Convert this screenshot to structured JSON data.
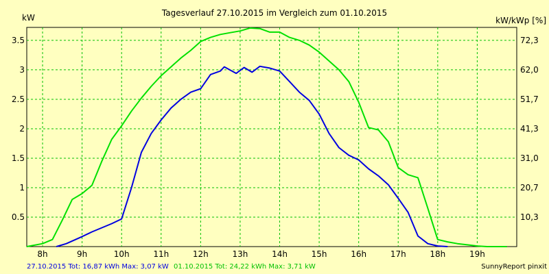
{
  "chart_data": {
    "type": "line",
    "title": "Tagesverlauf 27.10.2015 im Vergleich zum 01.10.2015",
    "ylabel_left": "kW",
    "ylabel_right": "kW/kWp [%]",
    "xlim": [
      7.6,
      20.0
    ],
    "ylim": [
      0,
      3.72
    ],
    "grid": true,
    "x_ticks": [
      {
        "value": 8,
        "label": "8h"
      },
      {
        "value": 9,
        "label": "9h"
      },
      {
        "value": 10,
        "label": "10h"
      },
      {
        "value": 11,
        "label": "11h"
      },
      {
        "value": 12,
        "label": "12h"
      },
      {
        "value": 13,
        "label": "13h"
      },
      {
        "value": 14,
        "label": "14h"
      },
      {
        "value": 15,
        "label": "15h"
      },
      {
        "value": 16,
        "label": "16h"
      },
      {
        "value": 17,
        "label": "17h"
      },
      {
        "value": 18,
        "label": "18h"
      },
      {
        "value": 19,
        "label": "19h"
      }
    ],
    "y_ticks_left": [
      {
        "value": 0.5,
        "label": "0.5"
      },
      {
        "value": 1.0,
        "label": "1"
      },
      {
        "value": 1.5,
        "label": "1.5"
      },
      {
        "value": 2.0,
        "label": "2"
      },
      {
        "value": 2.5,
        "label": "2.5"
      },
      {
        "value": 3.0,
        "label": "3"
      },
      {
        "value": 3.5,
        "label": "3.5"
      }
    ],
    "y_ticks_right": [
      {
        "value": 0.5,
        "label": "10,3"
      },
      {
        "value": 1.0,
        "label": "20,7"
      },
      {
        "value": 1.5,
        "label": "31,0"
      },
      {
        "value": 2.0,
        "label": "41,3"
      },
      {
        "value": 2.5,
        "label": "51,7"
      },
      {
        "value": 3.0,
        "label": "62,0"
      },
      {
        "value": 3.5,
        "label": "72,3"
      }
    ],
    "series": [
      {
        "color": "#00e000",
        "x": [
          7.6,
          8.0,
          8.25,
          8.5,
          8.75,
          9.0,
          9.25,
          9.5,
          9.75,
          10.0,
          10.25,
          10.5,
          10.75,
          11.0,
          11.25,
          11.5,
          11.75,
          12.0,
          12.25,
          12.5,
          12.75,
          13.0,
          13.25,
          13.5,
          13.75,
          14.0,
          14.25,
          14.5,
          14.75,
          15.0,
          15.25,
          15.5,
          15.75,
          16.0,
          16.25,
          16.5,
          16.75,
          17.0,
          17.25,
          17.5,
          17.75,
          18.0,
          18.25,
          18.5,
          18.75,
          19.0,
          19.25,
          19.5,
          19.75
        ],
        "y": [
          0.0,
          0.05,
          0.12,
          0.45,
          0.8,
          0.9,
          1.04,
          1.45,
          1.82,
          2.05,
          2.3,
          2.52,
          2.72,
          2.9,
          3.05,
          3.2,
          3.33,
          3.48,
          3.55,
          3.6,
          3.63,
          3.66,
          3.71,
          3.7,
          3.64,
          3.64,
          3.55,
          3.5,
          3.42,
          3.3,
          3.15,
          3.0,
          2.8,
          2.45,
          2.02,
          1.98,
          1.78,
          1.34,
          1.22,
          1.17,
          0.65,
          0.12,
          0.08,
          0.05,
          0.03,
          0.01,
          0.0,
          0.0,
          0.0
        ]
      },
      {
        "color": "#0000e0",
        "x": [
          8.35,
          8.6,
          9.0,
          9.25,
          9.5,
          9.75,
          10.0,
          10.25,
          10.5,
          10.75,
          11.0,
          11.25,
          11.5,
          11.75,
          12.0,
          12.25,
          12.5,
          12.6,
          12.9,
          13.1,
          13.3,
          13.5,
          13.75,
          14.0,
          14.25,
          14.5,
          14.75,
          15.0,
          15.25,
          15.5,
          15.75,
          16.0,
          16.25,
          16.5,
          16.75,
          17.0,
          17.25,
          17.5,
          17.75,
          18.0,
          18.25
        ],
        "y": [
          0.0,
          0.05,
          0.17,
          0.25,
          0.32,
          0.39,
          0.47,
          1.0,
          1.6,
          1.92,
          2.15,
          2.35,
          2.5,
          2.62,
          2.68,
          2.92,
          2.98,
          3.05,
          2.94,
          3.04,
          2.96,
          3.06,
          3.03,
          2.98,
          2.8,
          2.62,
          2.48,
          2.25,
          1.92,
          1.68,
          1.55,
          1.47,
          1.32,
          1.2,
          1.05,
          0.82,
          0.58,
          0.18,
          0.05,
          0.01,
          0.0
        ]
      }
    ],
    "footer": {
      "series1_summary": "27.10.2015 Tot: 16,87 kWh Max: 3,07 kW",
      "series2_summary": "01.10.2015 Tot: 24,22 kWh Max: 3,71 kW",
      "credit": "SunnyReport pinxit"
    }
  }
}
